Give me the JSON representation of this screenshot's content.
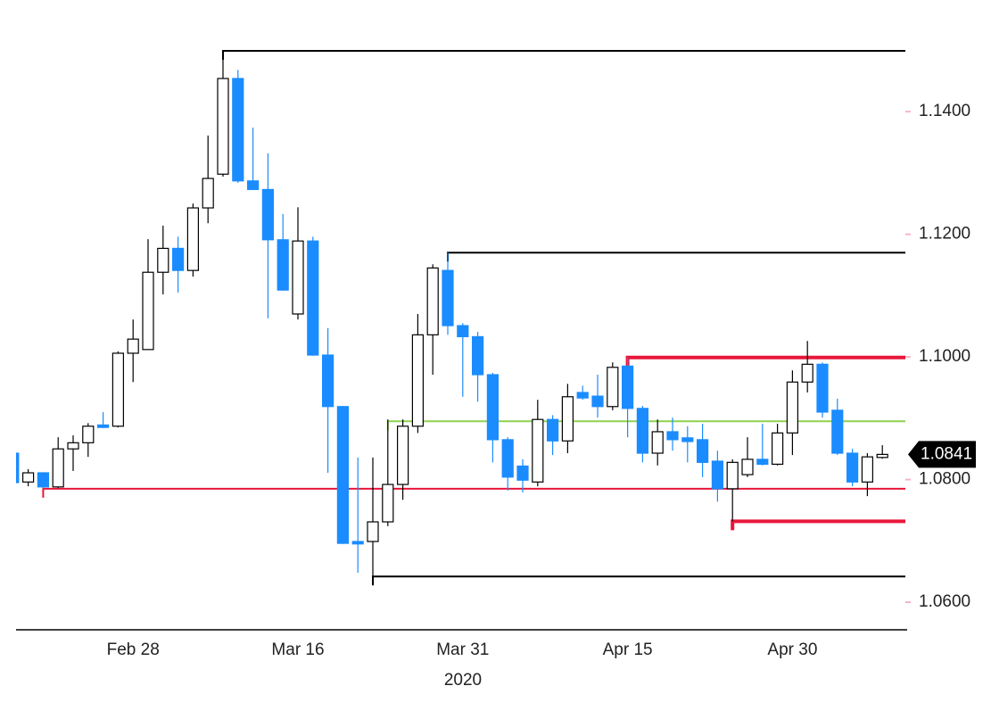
{
  "chart_data": {
    "type": "candlestick",
    "categories": [
      null,
      null,
      null,
      null,
      null,
      null,
      null,
      null,
      "Feb 28",
      null,
      null,
      null,
      null,
      null,
      null,
      null,
      null,
      null,
      null,
      "Mar 16",
      null,
      null,
      null,
      null,
      null,
      null,
      null,
      null,
      null,
      null,
      "Mar 31",
      null,
      null,
      null,
      null,
      null,
      null,
      null,
      null,
      null,
      null,
      "Apr 15",
      null,
      null,
      null,
      null,
      null,
      null,
      null,
      null,
      null,
      null,
      "Apr 30",
      null,
      null,
      null,
      null,
      null,
      null
    ],
    "x_sublabel": "2020",
    "open": [
      1.0843,
      1.0796,
      1.0811,
      1.0788,
      1.085,
      1.086,
      1.0889,
      1.0887,
      1.1006,
      1.1012,
      1.1138,
      1.1177,
      1.1141,
      1.1243,
      1.1298,
      1.1454,
      1.1287,
      1.1273,
      1.1191,
      1.107,
      1.1189,
      1.1003,
      1.0919,
      1.0699,
      1.0699,
      1.0731,
      1.0792,
      1.0887,
      1.1036,
      1.1141,
      1.1051,
      1.1033,
      1.0971,
      1.0865,
      1.0822,
      1.0796,
      1.0898,
      1.0863,
      1.0942,
      1.0936,
      1.0919,
      1.0985,
      1.0916,
      1.0843,
      1.0878,
      1.0868,
      1.0865,
      1.083,
      1.0785,
      1.0808,
      1.0833,
      1.0825,
      1.0876,
      1.0959,
      1.0988,
      1.0913,
      1.0843,
      1.0796,
      1.0836
    ],
    "high": [
      1.0845,
      1.0817,
      1.0812,
      1.0869,
      1.0872,
      1.0892,
      1.091,
      1.1009,
      1.1061,
      1.1192,
      1.1214,
      1.1196,
      1.125,
      1.1361,
      1.1499,
      1.1468,
      1.1374,
      1.1332,
      1.1233,
      1.1244,
      1.1196,
      1.1047,
      1.092,
      1.0836,
      1.0836,
      1.0898,
      1.0898,
      1.107,
      1.1151,
      1.117,
      1.1055,
      1.1041,
      1.0974,
      1.0869,
      1.0833,
      1.093,
      1.0905,
      1.0956,
      1.0953,
      1.0971,
      1.0991,
      1.0999,
      1.092,
      1.0898,
      1.0901,
      1.0887,
      1.0891,
      1.0847,
      1.0833,
      1.0869,
      1.0891,
      1.0891,
      1.0978,
      1.1026,
      1.0991,
      1.0932,
      1.085,
      1.0843,
      1.0856
    ],
    "low": [
      1.079,
      1.0789,
      1.0785,
      1.0786,
      1.0814,
      1.0837,
      1.0884,
      1.0885,
      1.0959,
      1.1012,
      1.1102,
      1.1105,
      1.1131,
      1.1218,
      1.1294,
      1.1284,
      1.1272,
      1.1063,
      1.1108,
      1.1061,
      1.1002,
      1.0811,
      1.0695,
      1.0648,
      1.0642,
      1.0724,
      1.0767,
      1.0876,
      1.0971,
      1.1036,
      1.0935,
      1.0927,
      1.0828,
      1.0782,
      1.0779,
      1.0789,
      1.084,
      1.0843,
      1.093,
      1.0901,
      1.0913,
      1.0869,
      1.0828,
      1.0823,
      1.0847,
      1.0828,
      1.0804,
      1.0764,
      1.0732,
      1.0804,
      1.0823,
      1.0823,
      1.084,
      1.0942,
      1.0901,
      1.084,
      1.0789,
      1.0773,
      1.0834
    ],
    "close": [
      1.0795,
      1.0811,
      1.0788,
      1.085,
      1.086,
      1.0887,
      1.0885,
      1.1006,
      1.1029,
      1.1138,
      1.1177,
      1.1141,
      1.1243,
      1.1291,
      1.1454,
      1.1287,
      1.1273,
      1.1191,
      1.1109,
      1.1189,
      1.1003,
      1.0919,
      1.0696,
      1.0695,
      1.0731,
      1.0792,
      1.0887,
      1.1036,
      1.1145,
      1.1051,
      1.1033,
      1.0971,
      1.0865,
      1.0804,
      1.0799,
      1.0898,
      1.0863,
      1.0935,
      1.0933,
      1.0919,
      1.0983,
      1.0916,
      1.0843,
      1.0878,
      1.0865,
      1.0862,
      1.0828,
      1.0785,
      1.0828,
      1.0833,
      1.0825,
      1.0876,
      1.0959,
      1.0988,
      1.091,
      1.0843,
      1.0796,
      1.0837,
      1.0841
    ],
    "up_color": "#ffffff",
    "down_color": "#1a8cff",
    "levels": [
      {
        "value": 1.1499,
        "start": 14,
        "color": "#000000",
        "width": 2
      },
      {
        "value": 1.117,
        "start": 29,
        "color": "#000000",
        "width": 2
      },
      {
        "value": 1.0999,
        "start": 41,
        "color": "#e8173a",
        "width": 4
      },
      {
        "value": 1.0895,
        "start": 25,
        "color": "#8fd14f",
        "width": 2
      },
      {
        "value": 1.0785,
        "start": 2,
        "color": "#e8173a",
        "width": 2
      },
      {
        "value": 1.0732,
        "start": 48,
        "color": "#e8173a",
        "width": 4
      },
      {
        "value": 1.0642,
        "start": 24,
        "color": "#000000",
        "width": 2
      }
    ],
    "last_price": 1.0841,
    "ylim": [
      1.0555,
      1.1582
    ],
    "yticks": [
      {
        "value": 1.14,
        "label": "1.1400"
      },
      {
        "value": 1.12,
        "label": "1.1200"
      },
      {
        "value": 1.1,
        "label": "1.1000"
      },
      {
        "value": 1.08,
        "label": "1.0800"
      },
      {
        "value": 1.06,
        "label": "1.0600"
      }
    ],
    "grid": false
  }
}
